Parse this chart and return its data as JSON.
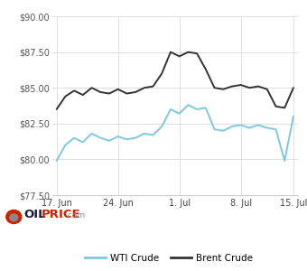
{
  "wti_dates": [
    0,
    1,
    2,
    3,
    4,
    5,
    6,
    7,
    8,
    9,
    10,
    11,
    12,
    13,
    14,
    15,
    16,
    17,
    18,
    19,
    20,
    21,
    22,
    23,
    24,
    25,
    26,
    27
  ],
  "wti_values": [
    79.9,
    81.0,
    81.5,
    81.2,
    81.8,
    81.5,
    81.3,
    81.6,
    81.4,
    81.5,
    81.8,
    81.7,
    82.3,
    83.5,
    83.2,
    83.8,
    83.5,
    83.6,
    82.1,
    82.0,
    82.3,
    82.4,
    82.2,
    82.4,
    82.2,
    82.1,
    79.9,
    83.0
  ],
  "brent_dates": [
    0,
    1,
    2,
    3,
    4,
    5,
    6,
    7,
    8,
    9,
    10,
    11,
    12,
    13,
    14,
    15,
    16,
    17,
    18,
    19,
    20,
    21,
    22,
    23,
    24,
    25,
    26,
    27
  ],
  "brent_values": [
    83.5,
    84.4,
    84.8,
    84.5,
    85.0,
    84.7,
    84.6,
    84.9,
    84.6,
    84.7,
    85.0,
    85.1,
    86.0,
    87.5,
    87.2,
    87.5,
    87.4,
    86.3,
    85.0,
    84.9,
    85.1,
    85.2,
    85.0,
    85.1,
    84.9,
    83.7,
    83.6,
    85.0
  ],
  "ylim": [
    77.5,
    90.0
  ],
  "yticks": [
    77.5,
    80.0,
    82.5,
    85.0,
    87.5,
    90.0
  ],
  "xtick_positions": [
    0,
    7,
    14,
    21,
    27
  ],
  "xtick_labels": [
    "17. Jun",
    "24. Jun",
    "1. Jul",
    "8. Jul",
    "15. Jul"
  ],
  "wti_color": "#7ec8e3",
  "brent_color": "#333333",
  "grid_color": "#e0e0e0",
  "bg_color": "#ffffff",
  "legend_wti": "WTI Crude",
  "legend_brent": "Brent Crude",
  "xlim": [
    -0.5,
    27.5
  ]
}
